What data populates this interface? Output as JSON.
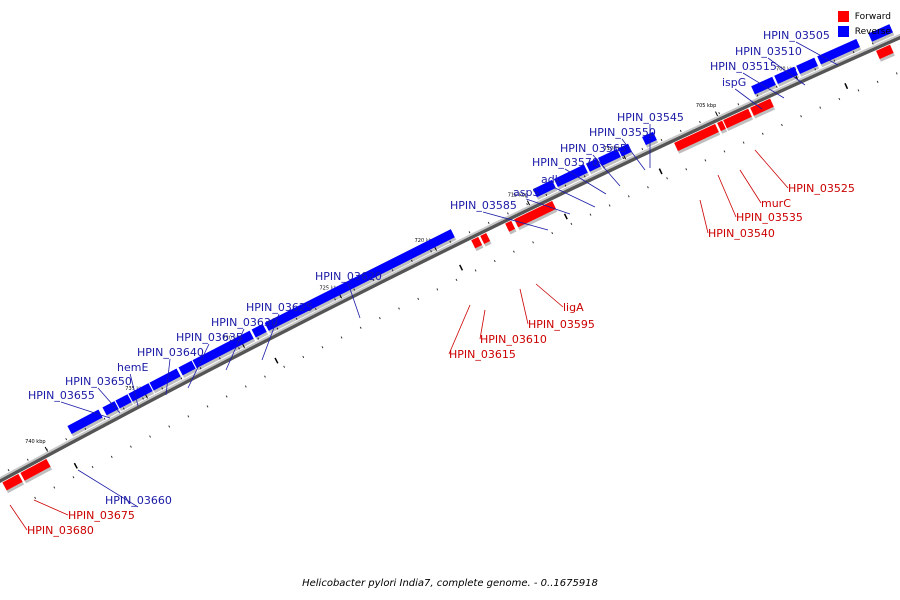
{
  "caption": "Helicobacter pylori India7, complete genome. - 0..1675918",
  "legend": {
    "forward": {
      "label": "Forward",
      "color": "#ff0000"
    },
    "reverse": {
      "label": "Reverse",
      "color": "#0000ff"
    }
  },
  "ticks": [
    "700 kbp",
    "705 kbp",
    "710 kbp",
    "715 kbp",
    "720 kbp",
    "725 kbp",
    "730 kbp",
    "735 kbp",
    "740 kbp"
  ],
  "genes": [
    {
      "label": "HPIN_03505",
      "strand": "reverse"
    },
    {
      "label": "HPIN_03510",
      "strand": "reverse"
    },
    {
      "label": "HPIN_03515",
      "strand": "reverse"
    },
    {
      "label": "ispG",
      "strand": "reverse"
    },
    {
      "label": "HPIN_03525",
      "strand": "forward"
    },
    {
      "label": "murC",
      "strand": "forward"
    },
    {
      "label": "HPIN_03535",
      "strand": "forward"
    },
    {
      "label": "HPIN_03540",
      "strand": "forward"
    },
    {
      "label": "HPIN_03545",
      "strand": "reverse"
    },
    {
      "label": "HPIN_03550",
      "strand": "reverse"
    },
    {
      "label": "HPIN_03565",
      "strand": "reverse"
    },
    {
      "label": "HPIN_03570",
      "strand": "reverse"
    },
    {
      "label": "adk",
      "strand": "reverse"
    },
    {
      "label": "aspS",
      "strand": "reverse"
    },
    {
      "label": "HPIN_03585",
      "strand": "reverse"
    },
    {
      "label": "ligA",
      "strand": "forward"
    },
    {
      "label": "HPIN_03595",
      "strand": "forward"
    },
    {
      "label": "HPIN_03610",
      "strand": "forward"
    },
    {
      "label": "HPIN_03615",
      "strand": "forward"
    },
    {
      "label": "HPIN_03620",
      "strand": "reverse"
    },
    {
      "label": "HPIN_03625",
      "strand": "reverse"
    },
    {
      "label": "HPIN_03630",
      "strand": "reverse"
    },
    {
      "label": "HPIN_03635",
      "strand": "reverse"
    },
    {
      "label": "HPIN_03640",
      "strand": "reverse"
    },
    {
      "label": "hemE",
      "strand": "reverse"
    },
    {
      "label": "HPIN_03650",
      "strand": "reverse"
    },
    {
      "label": "HPIN_03655",
      "strand": "reverse"
    },
    {
      "label": "HPIN_03660",
      "strand": "reverse"
    },
    {
      "label": "HPIN_03675",
      "strand": "forward"
    },
    {
      "label": "HPIN_03680",
      "strand": "forward"
    }
  ]
}
